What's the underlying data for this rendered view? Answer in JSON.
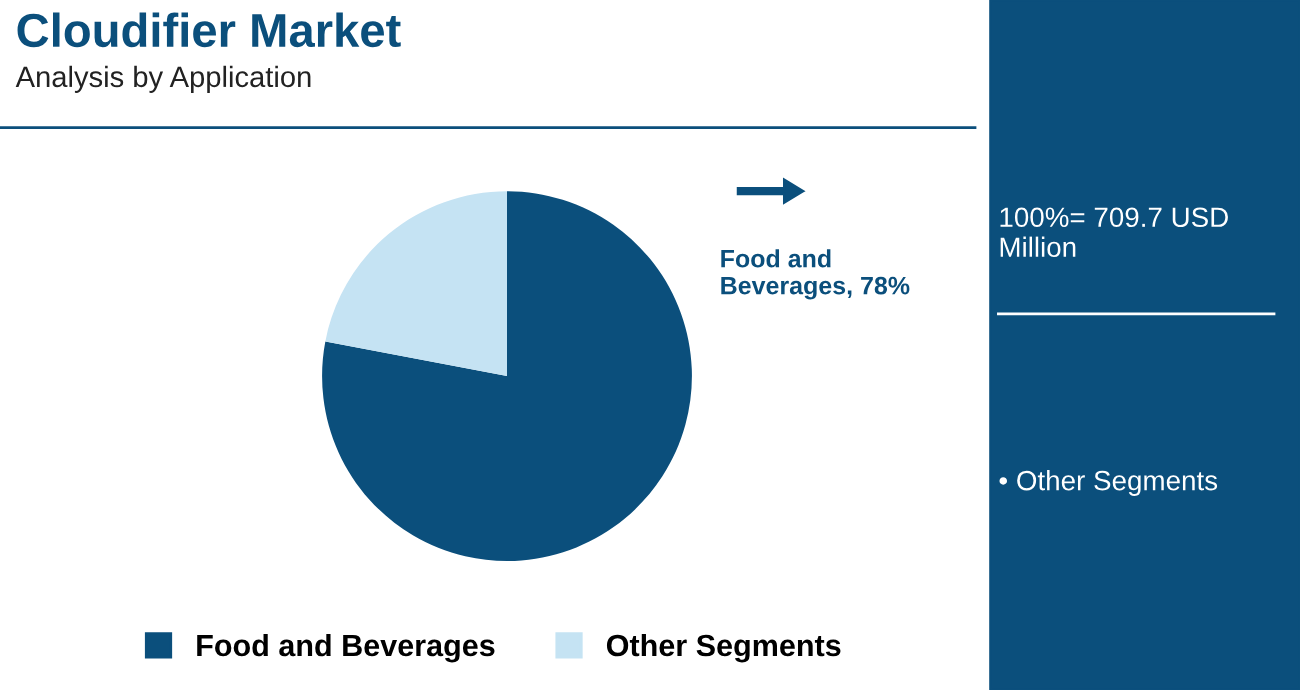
{
  "chart_data": {
    "type": "pie",
    "title": "Cloudifier Market",
    "subtitle": "Analysis by Application",
    "categories": [
      "Food and Beverages",
      "Other Segments"
    ],
    "values": [
      78,
      22
    ],
    "colors": [
      "#0b4f7c",
      "#c5e3f3"
    ],
    "value_labels": [
      "Food and\nBeverages, 78%",
      null
    ],
    "legend": "bottom",
    "annotations": [
      "100%= 709.7 USD Million",
      "• Other Segments"
    ]
  }
}
